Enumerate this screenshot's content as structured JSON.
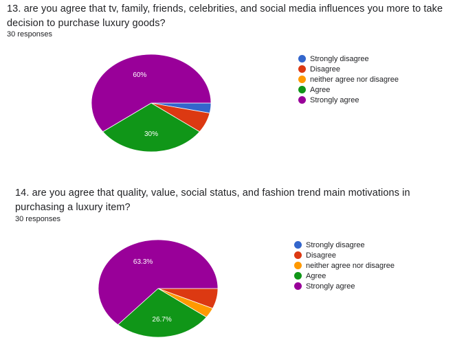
{
  "questions": [
    {
      "title": "13. are you agree that tv, family, friends, celebrities, and social media influences you more to take decision to purchase luxury goods?",
      "responses": "30 responses"
    },
    {
      "title": "14. are you agree that quality, value, social status, and fashion trend main motivations in purchasing a luxury item?",
      "responses": "30 responses"
    }
  ],
  "chart_data": [
    {
      "type": "pie",
      "title": "13. are you agree that tv, family, friends, celebrities, and social media influences you more to take decision to purchase luxury goods?",
      "categories": [
        "Strongly disagree",
        "Disagree",
        "neither agree nor disagree",
        "Agree",
        "Strongly agree"
      ],
      "values": [
        3.3,
        6.7,
        0,
        30,
        60
      ],
      "colors": [
        "#3366cc",
        "#dc3912",
        "#ff9900",
        "#109618",
        "#990099"
      ],
      "data_labels": [
        "",
        "",
        "",
        "30%",
        "60%"
      ],
      "legend": "right"
    },
    {
      "type": "pie",
      "title": "14. are you agree that quality, value, social status, and fashion trend main motivations in purchasing a luxury item?",
      "categories": [
        "Strongly disagree",
        "Disagree",
        "neither agree nor disagree",
        "Agree",
        "Strongly agree"
      ],
      "values": [
        0,
        6.7,
        3.3,
        26.7,
        63.3
      ],
      "colors": [
        "#3366cc",
        "#dc3912",
        "#ff9900",
        "#109618",
        "#990099"
      ],
      "data_labels": [
        "",
        "",
        "",
        "26.7%",
        "63.3%"
      ],
      "legend": "right"
    }
  ]
}
